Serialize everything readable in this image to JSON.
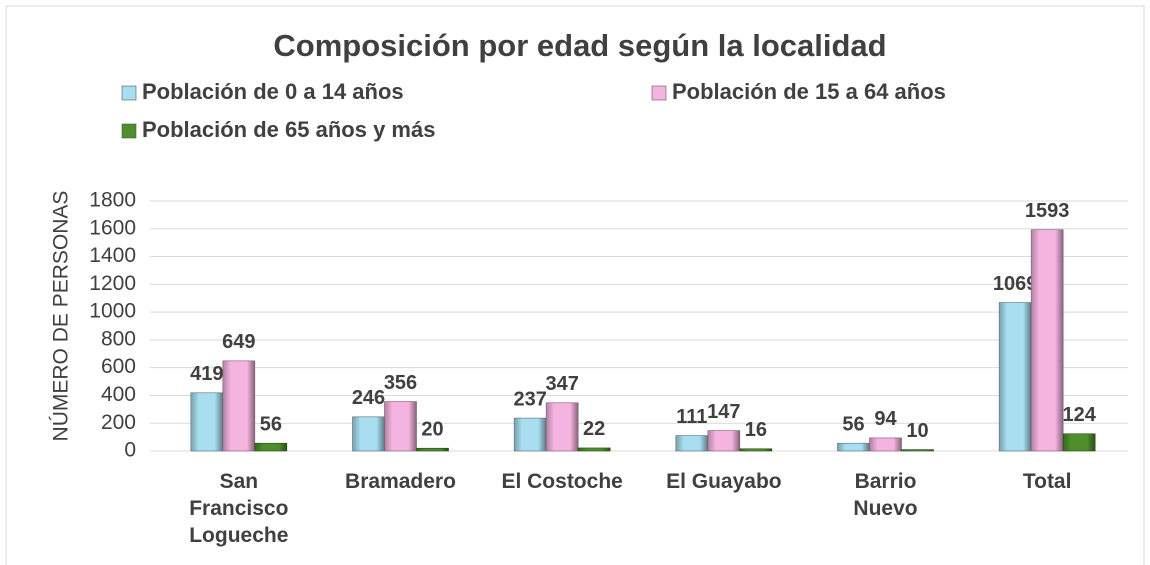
{
  "chart_data": {
    "type": "bar",
    "title": "Composición por edad según la localidad",
    "y_label": "NÚMERO DE PERSONAS",
    "categories": [
      "San Francisco Logueche",
      "Bramadero",
      "El Costoche",
      "El Guayabo",
      "Barrio Nuevo",
      "Total"
    ],
    "series": [
      {
        "name": "Población de 0 a 14 años",
        "color": "#a8def0",
        "values": [
          419,
          246,
          237,
          111,
          56,
          1069
        ]
      },
      {
        "name": "Población de 15 a 64 años",
        "color": "#f5b4e0",
        "values": [
          649,
          356,
          347,
          147,
          94,
          1593
        ]
      },
      {
        "name": "Población de 65 años y más",
        "color": "#4e8f2c",
        "values": [
          56,
          20,
          22,
          16,
          10,
          124
        ]
      }
    ],
    "ylim": [
      0,
      1800
    ],
    "yticks": [
      0,
      200,
      400,
      600,
      800,
      1000,
      1200,
      1400,
      1600,
      1800
    ],
    "grid": true
  }
}
